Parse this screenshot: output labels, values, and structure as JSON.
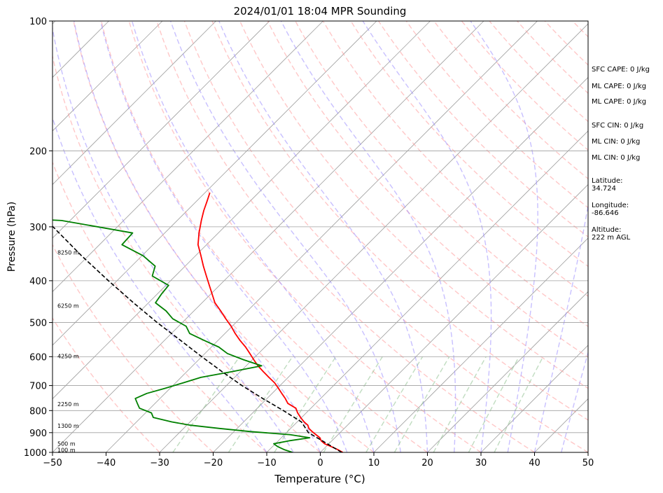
{
  "chart_data": {
    "type": "line",
    "title": "2024/01/01 18:04 MPR Sounding",
    "xlabel": "Temperature (°C)",
    "ylabel": "Pressure (hPa)",
    "xlim": [
      -50,
      50
    ],
    "ylim": [
      1000,
      100
    ],
    "y_scale": "log",
    "skew": true,
    "grid": true,
    "x_ticks": [
      "−50",
      "−40",
      "−30",
      "−20",
      "−10",
      "0",
      "10",
      "20",
      "30",
      "40",
      "50"
    ],
    "y_ticks": [
      "100",
      "200",
      "300",
      "400",
      "500",
      "600",
      "700",
      "800",
      "900",
      "1000"
    ],
    "height_labels": [
      {
        "text": "100 m",
        "p": 987
      },
      {
        "text": "500 m",
        "p": 954
      },
      {
        "text": "1300 m",
        "p": 867
      },
      {
        "text": "2250 m",
        "p": 772
      },
      {
        "text": "4250 m",
        "p": 598
      },
      {
        "text": "6250 m",
        "p": 457
      },
      {
        "text": "8250 m",
        "p": 344
      }
    ],
    "side_info": [
      "SFC CAPE: 0 J/kg",
      "ML CAPE: 0 J/kg",
      "ML CAPE: 0 J/kg",
      "SFC CIN: 0 J/kg",
      "ML CIN: 0 J/kg",
      "ML CIN: 0 J/kg",
      "Latitude:\n34.724",
      "Longitude:\n-86.646",
      "Altitude:\n222 m AGL"
    ],
    "series": [
      {
        "color": "#ff0000",
        "p": [
          1000,
          985,
          970,
          955,
          940,
          925,
          910,
          895,
          880,
          865,
          850,
          830,
          810,
          790,
          770,
          750,
          730,
          710,
          690,
          670,
          650,
          630,
          610,
          590,
          570,
          550,
          530,
          510,
          490,
          470,
          450,
          430,
          410,
          390,
          370,
          350,
          330,
          310,
          290,
          275,
          262,
          250
        ],
        "t": [
          4.2,
          2.7,
          1.0,
          -0.8,
          -2.0,
          -2.8,
          -4.1,
          -5.4,
          -6.6,
          -7.4,
          -8.7,
          -10.2,
          -11.6,
          -12.8,
          -15.2,
          -16.6,
          -18.2,
          -19.8,
          -21.5,
          -23.6,
          -25.7,
          -27.8,
          -29.7,
          -31.6,
          -33.6,
          -35.9,
          -38.1,
          -40.2,
          -42.6,
          -45.0,
          -47.6,
          -49.7,
          -51.9,
          -54.2,
          -56.6,
          -59.0,
          -61.6,
          -63.6,
          -65.5,
          -66.9,
          -68.0,
          -69.1
        ]
      },
      {
        "color": "#008000",
        "p": [
          1000,
          985,
          970,
          955,
          940,
          925,
          910,
          895,
          880,
          865,
          850,
          830,
          810,
          790,
          770,
          750,
          730,
          710,
          690,
          670,
          650,
          630,
          610,
          590,
          570,
          550,
          530,
          510,
          490,
          470,
          450,
          430,
          410,
          390,
          370,
          350,
          330,
          310,
          290,
          282
        ],
        "t": [
          -5.2,
          -7.3,
          -9.0,
          -10.3,
          -8.0,
          -4.7,
          -8.9,
          -16.9,
          -23.3,
          -29.3,
          -33.4,
          -37.7,
          -38.9,
          -42.0,
          -43.3,
          -44.6,
          -43.4,
          -40.9,
          -38.6,
          -36.3,
          -31.6,
          -27.1,
          -31.6,
          -35.8,
          -38.6,
          -42.6,
          -46.6,
          -48.6,
          -52.5,
          -55.2,
          -58.7,
          -59.2,
          -59.5,
          -64.3,
          -65.6,
          -69.8,
          -75.8,
          -76.0,
          -91.6,
          -114.7
        ]
      },
      {
        "color": "#000000",
        "dashed": true,
        "p": [
          1000,
          950,
          900,
          850,
          800,
          750,
          700,
          650,
          600,
          550,
          500,
          450,
          400,
          350,
          300,
          282
        ],
        "t": [
          4.0,
          -0.8,
          -5.9,
          -9.2,
          -14.7,
          -20.8,
          -27.1,
          -33.4,
          -40.0,
          -47.0,
          -54.7,
          -62.8,
          -71.6,
          -81.3,
          -92.0,
          -96.1
        ]
      }
    ],
    "background_lines": [
      {
        "kind": "isotherms",
        "color": "#a0a0a0"
      },
      {
        "kind": "dry_adiabats",
        "color": "#ff9a9a"
      },
      {
        "kind": "moist_adiabats",
        "color": "#9b8cff"
      },
      {
        "kind": "mixing_ratio",
        "color": "#8cc08c"
      }
    ]
  }
}
